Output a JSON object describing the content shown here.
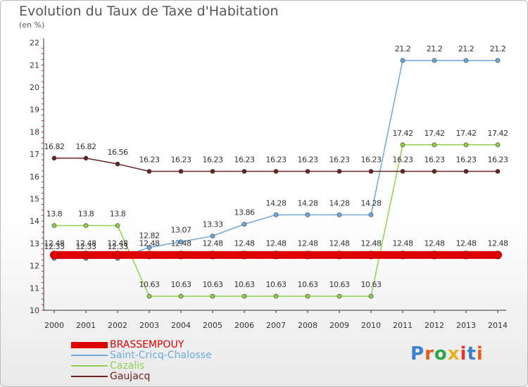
{
  "title": "Evolution du Taux de Taxe d'Habitation",
  "subtitle": "(en %)",
  "chart_data": {
    "type": "line",
    "x": [
      "2000",
      "2001",
      "2002",
      "2003",
      "2004",
      "2005",
      "2006",
      "2007",
      "2008",
      "2009",
      "2010",
      "2011",
      "2012",
      "2013",
      "2014"
    ],
    "ylim": [
      10,
      22
    ],
    "yticks": [
      10,
      11,
      12,
      13,
      14,
      15,
      16,
      17,
      18,
      19,
      20,
      21,
      22
    ],
    "grid": false,
    "legend_position": "bottom-left",
    "series": [
      {
        "name": "BRASSEMPOUY",
        "color": "#e00000",
        "values": [
          12.48,
          12.48,
          12.48,
          12.48,
          12.48,
          12.48,
          12.48,
          12.48,
          12.48,
          12.48,
          12.48,
          12.48,
          12.48,
          12.48,
          12.48
        ]
      },
      {
        "name": "Saint-Cricq-Chalosse",
        "color": "#6fa8dc",
        "values": [
          12.33,
          12.33,
          12.33,
          12.82,
          13.07,
          13.33,
          13.86,
          14.28,
          14.28,
          14.28,
          14.28,
          21.2,
          21.2,
          21.2,
          21.2
        ]
      },
      {
        "name": "Cazalis",
        "color": "#8fd14f",
        "values": [
          13.8,
          13.8,
          13.8,
          10.63,
          10.63,
          10.63,
          10.63,
          10.63,
          10.63,
          10.63,
          10.63,
          17.42,
          17.42,
          17.42,
          17.42
        ]
      },
      {
        "name": "Gaujacq",
        "color": "#6b2222",
        "values": [
          16.82,
          16.82,
          16.56,
          16.23,
          16.23,
          16.23,
          16.23,
          16.23,
          16.23,
          16.23,
          16.23,
          16.23,
          16.23,
          16.23,
          16.23
        ]
      }
    ]
  },
  "logo": {
    "text": "Proxiti",
    "colors": [
      "#3a7fd1",
      "#e35b1d",
      "#2fa34a",
      "#e3b21d",
      "#e0362f",
      "#3a7fd1",
      "#e35b1d"
    ]
  }
}
